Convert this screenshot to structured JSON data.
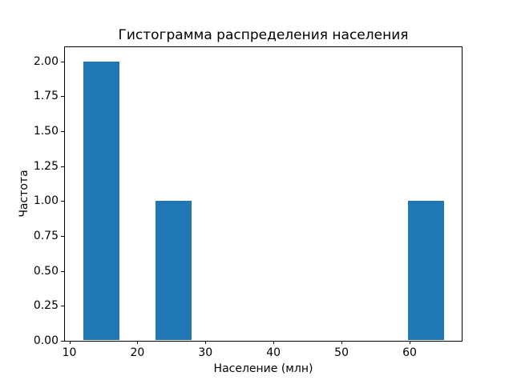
{
  "chart_data": {
    "type": "bar",
    "subtype": "histogram",
    "title": "Гистограмма распределения населения",
    "xlabel": "Население (млн)",
    "ylabel": "Частота",
    "bar_color": "#1f77b4",
    "background_color": "#ffffff",
    "spine_color": "#000000",
    "grid": false,
    "legend": false,
    "xlim": [
      9.35,
      67.65
    ],
    "ylim": [
      0,
      2.1
    ],
    "xticks": [
      {
        "value": 10,
        "label": "10"
      },
      {
        "value": 20,
        "label": "20"
      },
      {
        "value": 30,
        "label": "30"
      },
      {
        "value": 40,
        "label": "40"
      },
      {
        "value": 50,
        "label": "50"
      },
      {
        "value": 60,
        "label": "60"
      }
    ],
    "yticks": [
      {
        "value": 0.0,
        "label": "0.00"
      },
      {
        "value": 0.25,
        "label": "0.25"
      },
      {
        "value": 0.5,
        "label": "0.50"
      },
      {
        "value": 0.75,
        "label": "0.75"
      },
      {
        "value": 1.0,
        "label": "1.00"
      },
      {
        "value": 1.25,
        "label": "1.25"
      },
      {
        "value": 1.5,
        "label": "1.50"
      },
      {
        "value": 1.75,
        "label": "1.75"
      },
      {
        "value": 2.0,
        "label": "2.00"
      }
    ],
    "bars": [
      {
        "x0": 12.0,
        "x1": 17.3,
        "count": 2
      },
      {
        "x0": 22.6,
        "x1": 27.9,
        "count": 1
      },
      {
        "x0": 59.7,
        "x1": 65.0,
        "count": 1
      }
    ]
  }
}
